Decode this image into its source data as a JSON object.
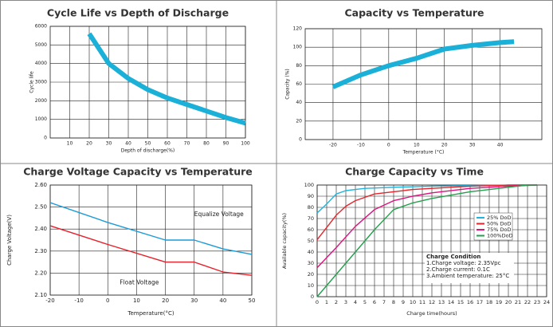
{
  "chart_data": [
    {
      "type": "line",
      "title": "Cycle Life vs Depth of Discharge",
      "x_label": "Depth of discharge(%)",
      "y_label": "Cycle life",
      "x": [
        20,
        30,
        40,
        50,
        60,
        70,
        80,
        90,
        100
      ],
      "values": [
        5600,
        4000,
        3200,
        2600,
        2150,
        1800,
        1450,
        1100,
        800
      ],
      "color": "#1ab0d8",
      "xlim": [
        0,
        100
      ],
      "xticks": [
        10,
        20,
        30,
        40,
        50,
        60,
        70,
        80,
        90,
        100
      ],
      "ylim": [
        0,
        6000
      ],
      "yticks": [
        0,
        1000,
        2000,
        3000,
        4000,
        5000,
        6000
      ],
      "grid": true
    },
    {
      "type": "line",
      "title": "Capacity vs Temperature",
      "x_label": "Temperature (°C)",
      "y_label": "Capacity (%)",
      "x": [
        -20,
        -10,
        0,
        10,
        20,
        30,
        40,
        45
      ],
      "values": [
        57,
        70,
        80,
        88,
        98,
        102,
        105,
        106
      ],
      "color": "#1ab0d8",
      "xlim": [
        -30,
        55
      ],
      "xticks": [
        -20,
        -10,
        0,
        10,
        20,
        30,
        40
      ],
      "ylim": [
        0,
        120
      ],
      "yticks": [
        0,
        20,
        40,
        60,
        80,
        100,
        120
      ],
      "grid": true
    },
    {
      "type": "line",
      "title": "Charge Voltage Capacity  vs  Temperature",
      "x_label": "Temperature(°C)",
      "y_label": "Charge Voltage(V)",
      "x": [
        -20,
        0,
        20,
        30,
        40,
        50
      ],
      "series": [
        {
          "name": "Equalize Voltage",
          "color": "#1b9bd7",
          "values": [
            2.52,
            2.43,
            2.35,
            2.35,
            2.31,
            2.285
          ]
        },
        {
          "name": "Float  Voltage",
          "color": "#e8202a",
          "values": [
            2.415,
            2.33,
            2.25,
            2.25,
            2.205,
            2.19
          ]
        }
      ],
      "xlim": [
        -20,
        50
      ],
      "xticks": [
        -20,
        -10,
        0,
        10,
        20,
        30,
        40,
        50
      ],
      "ylim": [
        2.1,
        2.6
      ],
      "yticks": [
        {
          "value": 2.1,
          "label": "2.10"
        },
        {
          "value": 2.2,
          "label": "2.20"
        },
        {
          "value": 2.3,
          "label": "2.30"
        },
        {
          "value": 2.4,
          "label": "2.40"
        },
        {
          "value": 2.5,
          "label": "2.50"
        },
        {
          "value": 2.6,
          "label": "2.60"
        }
      ],
      "grid": true
    },
    {
      "type": "line",
      "title": "Charge  Capacity  vs  Time",
      "x_label": "Charge time(hours)",
      "y_label": "Available capacity(%)",
      "series": [
        {
          "name": "25%  DoD",
          "color": "#1fb3dd",
          "x": [
            0,
            1,
            2,
            3,
            4,
            5,
            8,
            12,
            16,
            22,
            23
          ],
          "values": [
            75,
            83,
            92,
            95,
            96,
            97,
            98,
            99,
            99.5,
            100,
            100
          ]
        },
        {
          "name": "50%  DoD",
          "color": "#e5242b",
          "x": [
            0,
            1,
            2,
            3,
            4,
            5,
            6,
            8,
            10,
            12,
            16,
            20,
            23
          ],
          "values": [
            51,
            62,
            73,
            81,
            86,
            89,
            92,
            94,
            96,
            97,
            99,
            100,
            100
          ]
        },
        {
          "name": "75%  DoD",
          "color": "#d9157f",
          "x": [
            0,
            2,
            4,
            6,
            8,
            10,
            12,
            16,
            20,
            23
          ],
          "values": [
            26,
            44,
            63,
            78,
            86,
            90,
            93,
            97,
            99,
            100
          ]
        },
        {
          "name": "100%DoD",
          "color": "#22a04b",
          "x": [
            0,
            2,
            4,
            6,
            8,
            10,
            12,
            16,
            20,
            22,
            23
          ],
          "values": [
            0,
            20,
            40,
            60,
            78,
            84,
            88,
            94,
            98,
            100,
            100
          ]
        }
      ],
      "xlim": [
        0,
        24
      ],
      "xticks": [
        0,
        1,
        2,
        3,
        4,
        5,
        6,
        7,
        8,
        9,
        10,
        11,
        12,
        13,
        14,
        15,
        16,
        17,
        18,
        19,
        20,
        21,
        22,
        23,
        24
      ],
      "ylim": [
        0,
        100
      ],
      "yticks": [
        0,
        10,
        20,
        30,
        40,
        50,
        60,
        70,
        80,
        90,
        100
      ],
      "grid": true,
      "legend": "right",
      "annotation": {
        "title": "Charge Condition",
        "lines": [
          "1.Charge voltage: 2.35Vpc",
          "2.Charge current: 0.1C",
          "3.Ambient temperature: 25°C"
        ]
      }
    }
  ]
}
